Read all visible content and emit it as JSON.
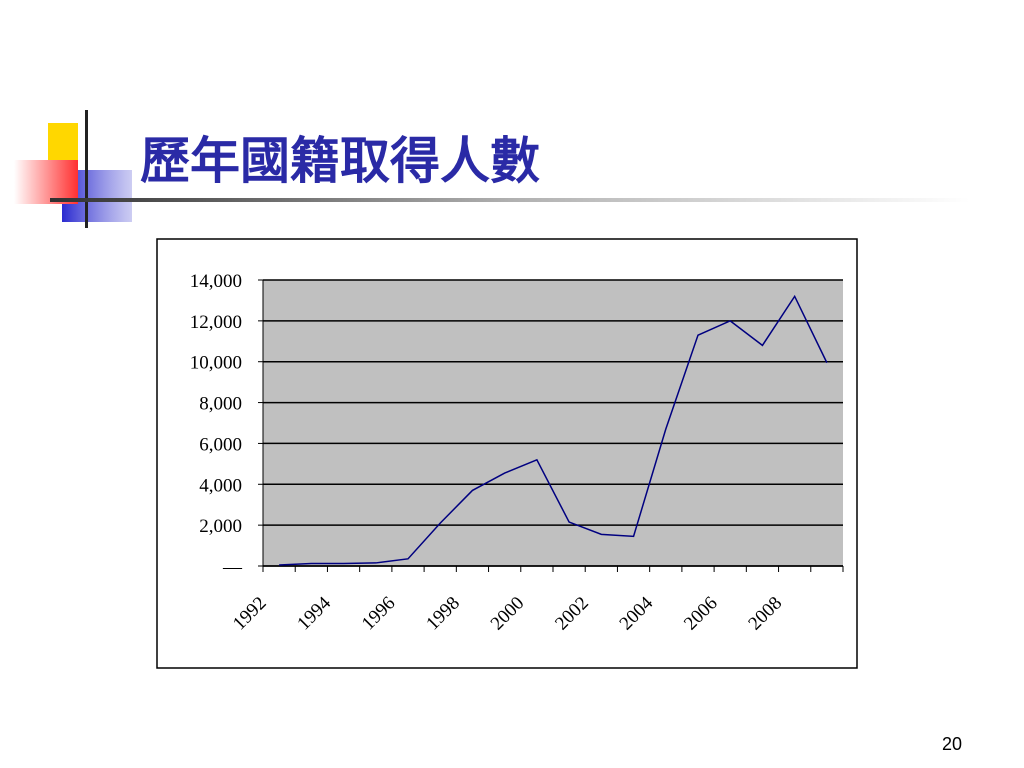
{
  "slide_title": "歷年國籍取得人數",
  "page_number": "20",
  "chart_data": {
    "type": "line",
    "categories": [
      "1992",
      null,
      "1994",
      null,
      "1996",
      null,
      "1998",
      null,
      "2000",
      null,
      "2002",
      null,
      "2004",
      null,
      "2006",
      null,
      "2008",
      null
    ],
    "series": [
      {
        "name": null,
        "color": "#000080",
        "values": [
          50,
          120,
          120,
          150,
          350,
          2100,
          3700,
          4550,
          5200,
          2150,
          1550,
          1450,
          6700,
          11300,
          12000,
          10800,
          13200,
          9950
        ]
      }
    ],
    "ylim": [
      0,
      14000
    ],
    "yticks": [
      {
        "value": 0,
        "label": "—"
      },
      {
        "value": 2000,
        "label": "2,000"
      },
      {
        "value": 4000,
        "label": "4,000"
      },
      {
        "value": 6000,
        "label": "6,000"
      },
      {
        "value": 8000,
        "label": "8,000"
      },
      {
        "value": 10000,
        "label": "10,000"
      },
      {
        "value": 12000,
        "label": "12,000"
      },
      {
        "value": 14000,
        "label": "14,000"
      }
    ],
    "grid": true,
    "plot_background": "#c0c0c0"
  }
}
